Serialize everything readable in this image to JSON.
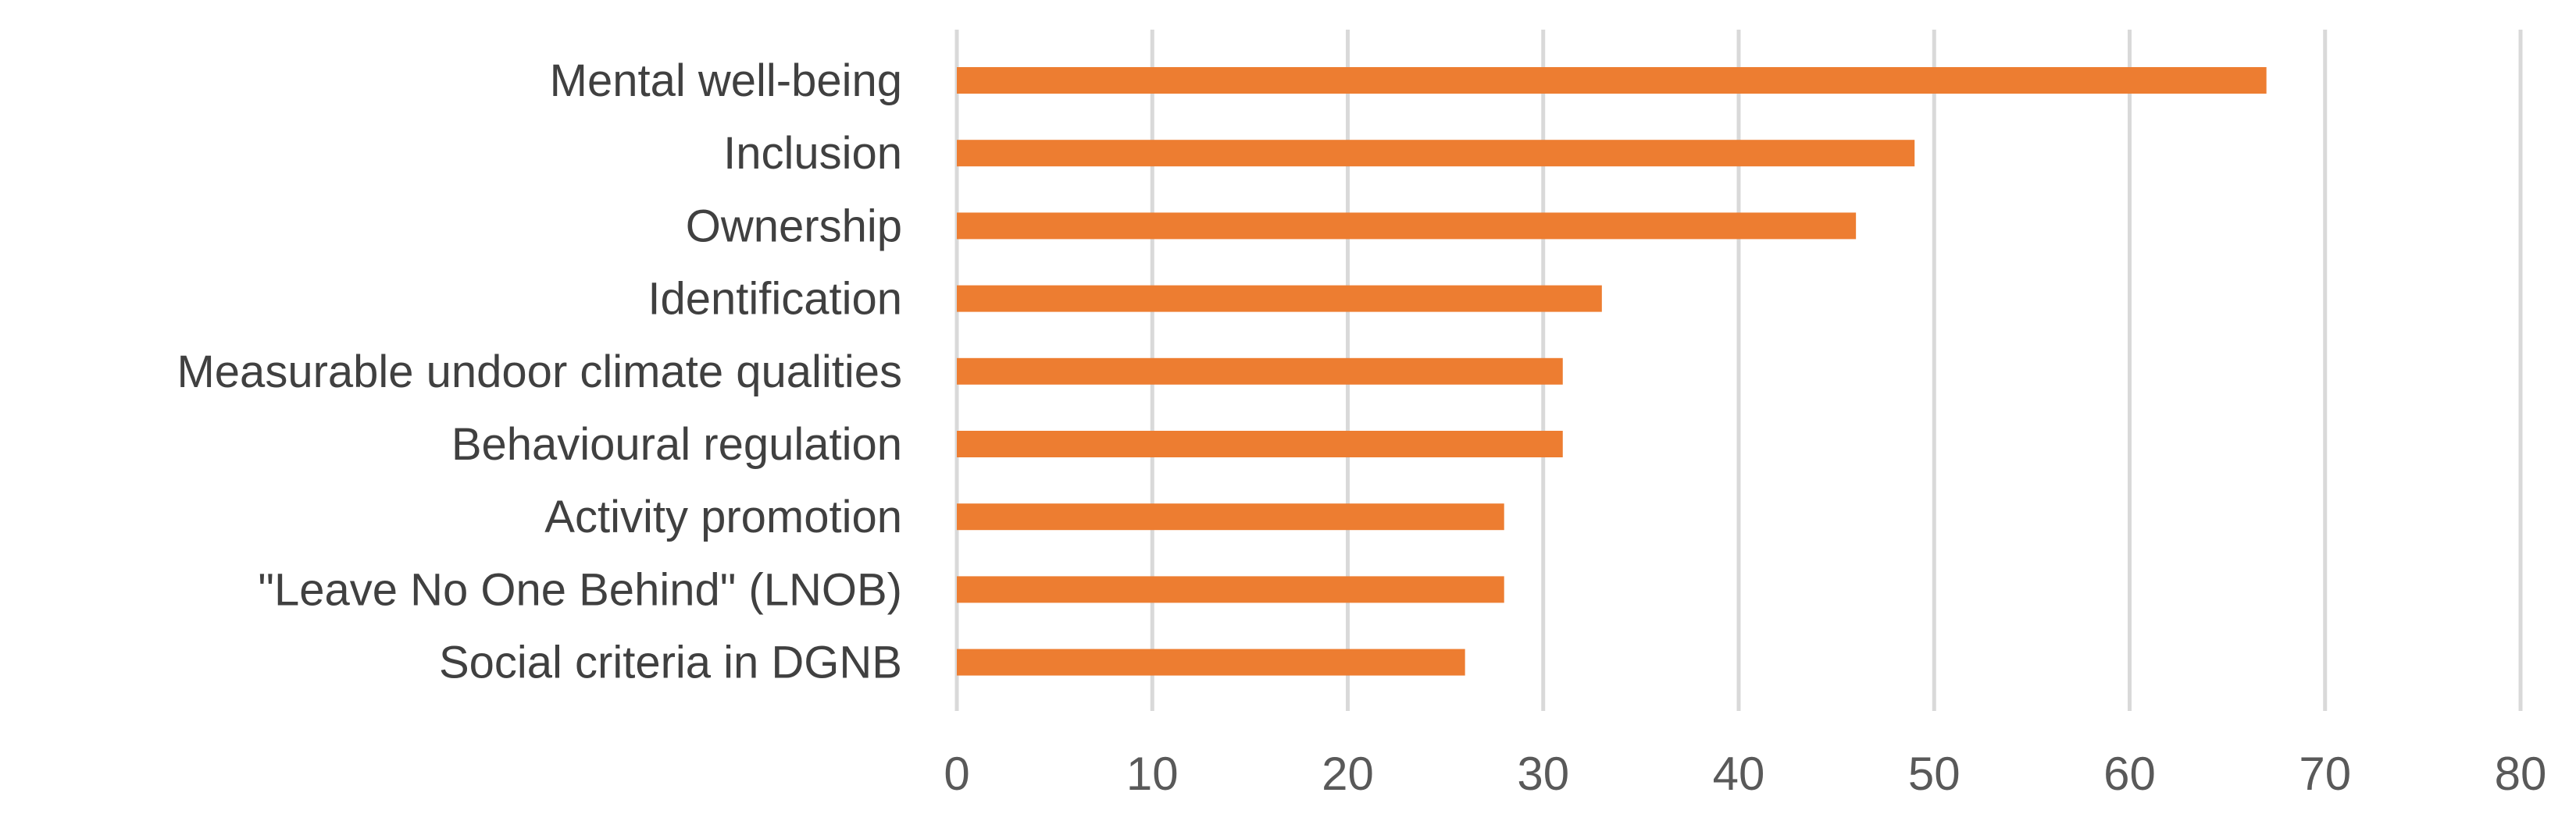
{
  "chart_data": {
    "type": "bar",
    "orientation": "horizontal",
    "title": "",
    "xlabel": "",
    "ylabel": "",
    "categories": [
      "Mental well-being",
      "Inclusion",
      "Ownership",
      "Identification",
      "Measurable undoor climate qualities",
      "Behavioural regulation",
      "Activity promotion",
      "\"Leave No One Behind\" (LNOB)",
      "Social criteria in DGNB"
    ],
    "values": [
      67,
      49,
      46,
      33,
      31,
      31,
      28,
      28,
      26
    ],
    "xlim": [
      0,
      80
    ],
    "xticks": [
      0,
      10,
      20,
      30,
      40,
      50,
      60,
      70,
      80
    ],
    "grid": true,
    "legend": "none",
    "colors": {
      "bar": "#ED7D31",
      "grid": "#D9D9D9",
      "tick_text": "#595959",
      "category_text": "#404040"
    }
  }
}
